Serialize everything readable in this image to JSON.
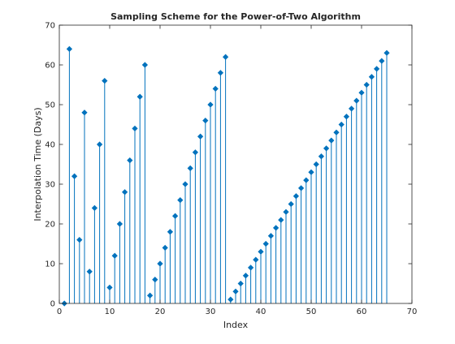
{
  "chart_data": {
    "type": "stem",
    "title": "Sampling Scheme for the Power-of-Two Algorithm",
    "xlabel": "Index",
    "ylabel": "Interpolation Time (Days)",
    "xlim": [
      0,
      70
    ],
    "ylim": [
      0,
      70
    ],
    "xticks": [
      0,
      10,
      20,
      30,
      40,
      50,
      60,
      70
    ],
    "yticks": [
      0,
      10,
      20,
      30,
      40,
      50,
      60,
      70
    ],
    "grid": false,
    "marker_color": "#0072BD",
    "series": [
      {
        "x": [
          1,
          2,
          3,
          4,
          5,
          6,
          7,
          8,
          9,
          10,
          11,
          12,
          13,
          14,
          15,
          16,
          17,
          18,
          19,
          20,
          21,
          22,
          23,
          24,
          25,
          26,
          27,
          28,
          29,
          30,
          31,
          32,
          33,
          34,
          35,
          36,
          37,
          38,
          39,
          40,
          41,
          42,
          43,
          44,
          45,
          46,
          47,
          48,
          49,
          50,
          51,
          52,
          53,
          54,
          55,
          56,
          57,
          58,
          59,
          60,
          61,
          62,
          63,
          64,
          65
        ],
        "values": [
          0,
          64,
          32,
          16,
          48,
          8,
          24,
          40,
          56,
          4,
          12,
          20,
          28,
          36,
          44,
          52,
          60,
          2,
          6,
          10,
          14,
          18,
          22,
          26,
          30,
          34,
          38,
          42,
          46,
          50,
          54,
          58,
          62,
          1,
          3,
          5,
          7,
          9,
          11,
          13,
          15,
          17,
          19,
          21,
          23,
          25,
          27,
          29,
          31,
          33,
          35,
          37,
          39,
          41,
          43,
          45,
          47,
          49,
          51,
          53,
          55,
          57,
          59,
          61,
          63
        ]
      }
    ]
  }
}
